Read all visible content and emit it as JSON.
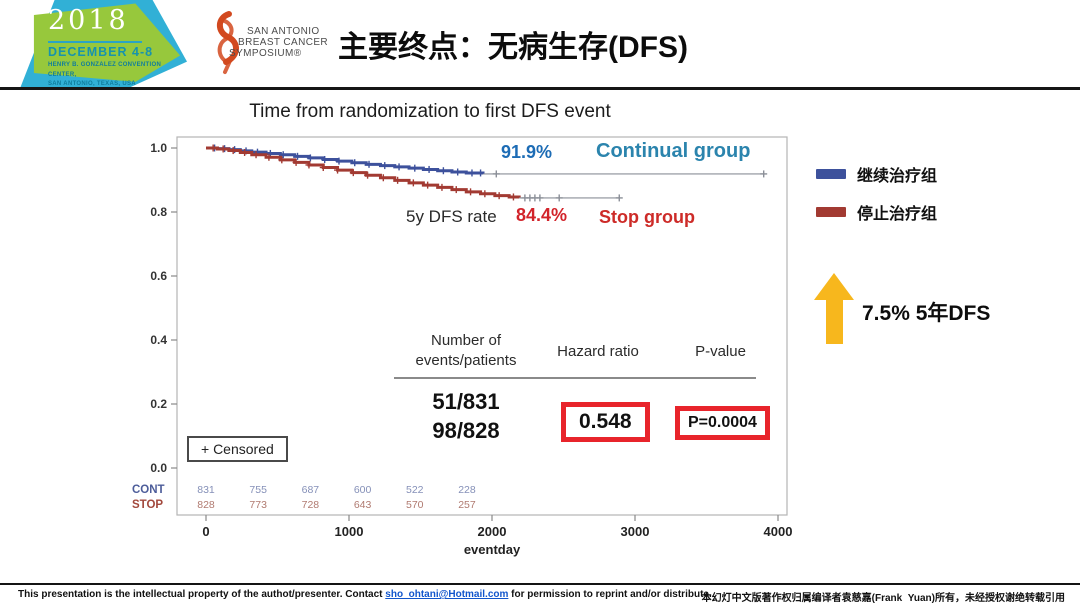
{
  "header": {
    "badge": {
      "year": "2018",
      "dates": "DECEMBER 4-8",
      "venue_line1": "HENRY B. GONZALEZ CONVENTION CENTER,",
      "venue_line2": "SAN ANTONIO, TEXAS, USA"
    },
    "logo": {
      "line1": "SAN ANTONIO",
      "line2": "BREAST CANCER",
      "line3": "SYMPOSIUM®",
      "ribbon_color": "#d2491f"
    },
    "title": "主要终点：无病生存(DFS)"
  },
  "chart_data": {
    "type": "line",
    "subtype": "kaplan-meier-step",
    "title": "Time from randomization to first DFS event",
    "xlabel": "eventday",
    "ylabel": "",
    "x_ticks": [
      0,
      1000,
      2000,
      3000,
      4000
    ],
    "y_ticks": [
      1.0,
      0.8,
      0.6,
      0.4,
      0.2,
      0.0
    ],
    "xlim": [
      -200,
      4060
    ],
    "ylim": [
      0.0,
      1.05
    ],
    "grid": false,
    "series": [
      {
        "name": "Continual group",
        "name_cn": "继续治疗组",
        "color": "#3d519c",
        "five_year_dfs_rate": "91.9%",
        "events_patients": "51/831",
        "steps": [
          [
            0,
            1.0
          ],
          [
            80,
            0.998
          ],
          [
            160,
            0.995
          ],
          [
            240,
            0.991
          ],
          [
            320,
            0.987
          ],
          [
            420,
            0.983
          ],
          [
            520,
            0.979
          ],
          [
            620,
            0.974
          ],
          [
            720,
            0.969
          ],
          [
            820,
            0.964
          ],
          [
            920,
            0.959
          ],
          [
            1020,
            0.954
          ],
          [
            1120,
            0.949
          ],
          [
            1220,
            0.945
          ],
          [
            1320,
            0.941
          ],
          [
            1420,
            0.937
          ],
          [
            1520,
            0.933
          ],
          [
            1620,
            0.929
          ],
          [
            1720,
            0.925
          ],
          [
            1820,
            0.922
          ],
          [
            1937,
            0.919
          ]
        ],
        "extension_end": 3900,
        "censor_days": [
          60,
          130,
          200,
          280,
          360,
          450,
          540,
          640,
          730,
          830,
          930,
          1040,
          1140,
          1250,
          1350,
          1460,
          1560,
          1660,
          1760,
          1860,
          1920
        ],
        "extension_censors": [
          2030,
          3900
        ]
      },
      {
        "name": "Stop group",
        "name_cn": "停止治疗组",
        "color": "#a23a32",
        "five_year_dfs_rate": "84.4%",
        "events_patients": "98/828",
        "steps": [
          [
            0,
            1.0
          ],
          [
            80,
            0.997
          ],
          [
            160,
            0.992
          ],
          [
            240,
            0.986
          ],
          [
            320,
            0.979
          ],
          [
            420,
            0.971
          ],
          [
            520,
            0.963
          ],
          [
            620,
            0.955
          ],
          [
            720,
            0.947
          ],
          [
            820,
            0.939
          ],
          [
            920,
            0.931
          ],
          [
            1020,
            0.923
          ],
          [
            1120,
            0.915
          ],
          [
            1220,
            0.907
          ],
          [
            1320,
            0.899
          ],
          [
            1420,
            0.891
          ],
          [
            1520,
            0.884
          ],
          [
            1620,
            0.877
          ],
          [
            1720,
            0.87
          ],
          [
            1820,
            0.863
          ],
          [
            1920,
            0.857
          ],
          [
            2020,
            0.851
          ],
          [
            2120,
            0.847
          ],
          [
            2190,
            0.844
          ]
        ],
        "extension_end": 2890,
        "censor_days": [
          50,
          120,
          190,
          270,
          350,
          440,
          530,
          630,
          720,
          820,
          920,
          1030,
          1130,
          1240,
          1340,
          1450,
          1550,
          1650,
          1750,
          1850,
          1950,
          2050,
          2150
        ],
        "extension_censors": [
          2230,
          2265,
          2300,
          2335,
          2470,
          2890
        ]
      }
    ],
    "at_risk": {
      "days": [
        0,
        365,
        730,
        1095,
        1460,
        1825
      ],
      "groups": [
        {
          "label": "CONT",
          "label_color": "#4d5d9a",
          "value_color": "#8590b8",
          "values": [
            831,
            755,
            687,
            600,
            522,
            228
          ]
        },
        {
          "label": "STOP",
          "label_color": "#a2483c",
          "value_color": "#b07a70",
          "values": [
            828,
            773,
            728,
            643,
            570,
            257
          ]
        }
      ]
    },
    "annotations": {
      "continual_rate": "91.9%",
      "continual_label": "Continual group",
      "rate_prefix": "5y DFS rate",
      "stop_rate": "84.4%",
      "stop_label": "Stop group",
      "censored": "+ Censored"
    }
  },
  "stats": {
    "col1_header_line1": "Number of",
    "col1_header_line2": "events/patients",
    "col2_header": "Hazard ratio",
    "col3_header": "P-value",
    "events_continual": "51/831",
    "events_stop": "98/828",
    "hazard_ratio": "0.548",
    "p_value": "P=0.0004",
    "box_color": "#e8242b"
  },
  "legend": {
    "items": [
      {
        "label": "继续治疗组",
        "color": "#3d519c"
      },
      {
        "label": "停止治疗组",
        "color": "#a23a32"
      }
    ]
  },
  "highlight": {
    "arrow_color": "#f7b71d",
    "text": "7.5%  5年DFS"
  },
  "footer": {
    "left_pre": "This presentation is the intellectual property of the authot/presenter. Contact ",
    "email": "sho_ohtani@Hotmail.com",
    "left_post": " for permission to reprint and/or distribute.",
    "right": "本幻灯中文版著作权归属编译者袁慈嘉(Frank  Yuan)所有，未经授权谢绝转载引用"
  }
}
